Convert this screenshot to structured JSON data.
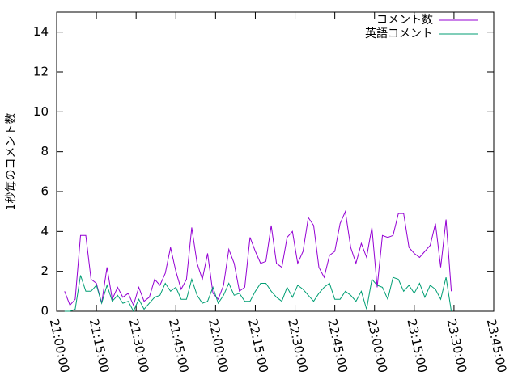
{
  "chart_data": {
    "type": "line",
    "ylabel": "1秒毎のコメント数",
    "xlim": [
      "21:00:00",
      "23:45:00"
    ],
    "xticks": [
      "21:00:00",
      "21:15:00",
      "21:30:00",
      "21:45:00",
      "22:00:00",
      "22:15:00",
      "22:30:00",
      "22:45:00",
      "23:00:00",
      "23:15:00",
      "23:30:00",
      "23:45:00"
    ],
    "ylim": [
      0,
      15
    ],
    "yticks": [
      0,
      2,
      4,
      6,
      8,
      10,
      12,
      14
    ],
    "legend": "top-right",
    "x": [
      "21:03:00",
      "21:05:00",
      "21:07:00",
      "21:09:00",
      "21:11:00",
      "21:13:00",
      "21:15:00",
      "21:17:00",
      "21:19:00",
      "21:21:00",
      "21:23:00",
      "21:25:00",
      "21:27:00",
      "21:29:00",
      "21:31:00",
      "21:33:00",
      "21:35:00",
      "21:37:00",
      "21:39:00",
      "21:41:00",
      "21:43:00",
      "21:45:00",
      "21:47:00",
      "21:49:00",
      "21:51:00",
      "21:53:00",
      "21:55:00",
      "21:57:00",
      "21:59:00",
      "22:01:00",
      "22:03:00",
      "22:05:00",
      "22:07:00",
      "22:09:00",
      "22:11:00",
      "22:13:00",
      "22:15:00",
      "22:17:00",
      "22:19:00",
      "22:21:00",
      "22:23:00",
      "22:25:00",
      "22:27:00",
      "22:29:00",
      "22:31:00",
      "22:33:00",
      "22:35:00",
      "22:37:00",
      "22:39:00",
      "22:41:00",
      "22:43:00",
      "22:45:00",
      "22:47:00",
      "22:49:00",
      "22:51:00",
      "22:53:00",
      "22:55:00",
      "22:57:00",
      "22:59:00",
      "23:01:00",
      "23:03:00",
      "23:05:00",
      "23:07:00",
      "23:09:00",
      "23:11:00",
      "23:13:00",
      "23:15:00",
      "23:17:00",
      "23:19:00",
      "23:21:00",
      "23:23:00",
      "23:25:00",
      "23:27:00",
      "23:29:00"
    ],
    "series": [
      {
        "name": "コメント数",
        "color": "#9400d3",
        "values": [
          1.0,
          0.3,
          0.6,
          3.8,
          3.8,
          1.6,
          1.4,
          0.4,
          2.2,
          0.6,
          1.2,
          0.7,
          0.9,
          0.3,
          1.2,
          0.5,
          0.7,
          1.6,
          1.3,
          1.9,
          3.2,
          2.0,
          1.1,
          1.6,
          4.2,
          2.4,
          1.6,
          2.9,
          0.9,
          0.6,
          1.3,
          3.1,
          2.4,
          1.0,
          1.2,
          3.7,
          3.0,
          2.4,
          2.5,
          4.3,
          2.4,
          2.2,
          3.7,
          4.0,
          2.4,
          3.0,
          4.7,
          4.3,
          2.2,
          1.7,
          2.8,
          3.0,
          4.4,
          5.0,
          3.2,
          2.4,
          3.4,
          2.7,
          4.2,
          1.2,
          3.8,
          3.7,
          3.8,
          4.9,
          4.9,
          3.2,
          2.9,
          2.7,
          3.0,
          3.3,
          4.4,
          2.2,
          4.6,
          1.0
        ]
      },
      {
        "name": "英語コメント",
        "color": "#009e73",
        "values": [
          0,
          0,
          0.1,
          1.8,
          1.0,
          1.0,
          1.3,
          0.4,
          1.3,
          0.5,
          0.8,
          0.4,
          0.5,
          0.0,
          0.6,
          0.1,
          0.4,
          0.7,
          0.8,
          1.4,
          1.0,
          1.2,
          0.6,
          0.6,
          1.6,
          0.8,
          0.4,
          0.5,
          1.2,
          0.4,
          0.8,
          1.4,
          0.8,
          0.9,
          0.5,
          0.5,
          1.0,
          1.4,
          1.4,
          1.0,
          0.7,
          0.5,
          1.2,
          0.7,
          1.3,
          1.1,
          0.8,
          0.5,
          0.9,
          1.2,
          1.4,
          0.6,
          0.6,
          1.0,
          0.8,
          0.5,
          1.0,
          0.1,
          1.6,
          1.3,
          1.2,
          0.6,
          1.7,
          1.6,
          1.0,
          1.3,
          0.9,
          1.4,
          0.7,
          1.3,
          1.1,
          0.6,
          1.7,
          0.0
        ]
      }
    ]
  }
}
